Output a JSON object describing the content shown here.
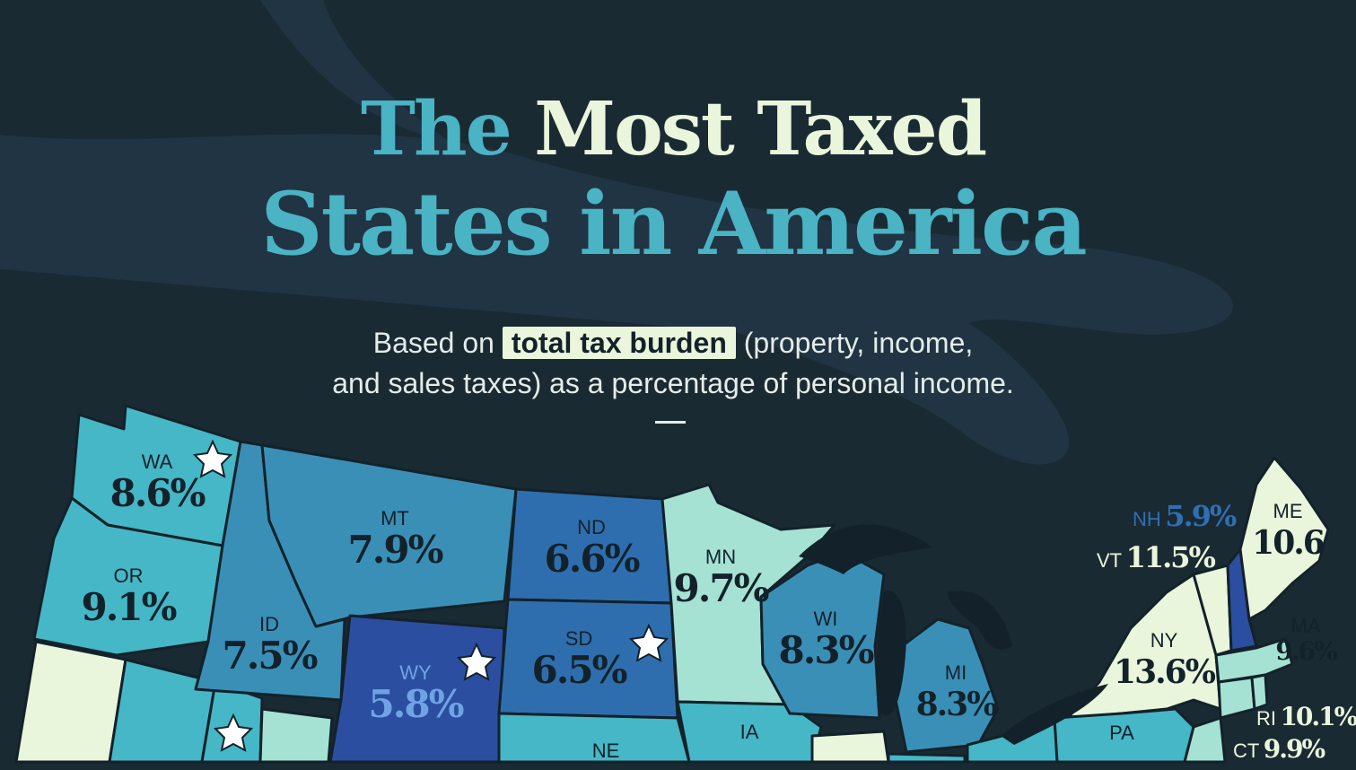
{
  "title": {
    "part1": "The ",
    "part2": "Most Taxed",
    "line2": "States in America"
  },
  "subtitle": {
    "before": "Based on ",
    "highlight": "total tax burden",
    "after": " (property, income,",
    "line2": "and sales taxes) as a percentage of personal income."
  },
  "colors": {
    "background": "#1a2a33",
    "title_teal": "#4ab3c4",
    "title_cream": "#eaf6dc",
    "highlight_bg": "#eaf6dc",
    "lowest_tier": "#2c4ea0",
    "low_tier": "#2f6eae",
    "mid_tier": "#3a8fb7",
    "upper_mid_tier": "#45b7c6",
    "high_tier": "#a6e2d3",
    "highest_tier": "#e9f6dc"
  },
  "legend_icons": {
    "star": "star-icon",
    "star_meaning": ""
  },
  "states": [
    {
      "abbr": "WA",
      "value": "8.6%",
      "tax_burden": 8.6,
      "star": true
    },
    {
      "abbr": "OR",
      "value": "9.1%",
      "tax_burden": 9.1,
      "star": false
    },
    {
      "abbr": "ID",
      "value": "7.5%",
      "tax_burden": 7.5,
      "star": false
    },
    {
      "abbr": "MT",
      "value": "7.9%",
      "tax_burden": 7.9,
      "star": false
    },
    {
      "abbr": "WY",
      "value": "5.8%",
      "tax_burden": 5.8,
      "star": true
    },
    {
      "abbr": "ND",
      "value": "6.6%",
      "tax_burden": 6.6,
      "star": false
    },
    {
      "abbr": "SD",
      "value": "6.5%",
      "tax_burden": 6.5,
      "star": true
    },
    {
      "abbr": "NE",
      "value": "",
      "tax_burden": null,
      "star": false
    },
    {
      "abbr": "MN",
      "value": "9.7%",
      "tax_burden": 9.7,
      "star": false
    },
    {
      "abbr": "IA",
      "value": "",
      "tax_burden": null,
      "star": false
    },
    {
      "abbr": "WI",
      "value": "8.3%",
      "tax_burden": 8.3,
      "star": false
    },
    {
      "abbr": "MI",
      "value": "8.3%",
      "tax_burden": 8.3,
      "star": false
    },
    {
      "abbr": "NY",
      "value": "13.6%",
      "tax_burden": 13.6,
      "star": false
    },
    {
      "abbr": "PA",
      "value": "",
      "tax_burden": null,
      "star": false
    },
    {
      "abbr": "VT",
      "value": "11.5%",
      "tax_burden": 11.5,
      "star": false
    },
    {
      "abbr": "NH",
      "value": "5.9%",
      "tax_burden": 5.9,
      "star": false
    },
    {
      "abbr": "ME",
      "value": "10.6",
      "tax_burden": 10.6,
      "star": false
    },
    {
      "abbr": "MA",
      "value": "9.6%",
      "tax_burden": 9.6,
      "star": false
    },
    {
      "abbr": "RI",
      "value": "10.1%",
      "tax_burden": 10.1,
      "star": false
    },
    {
      "abbr": "CT",
      "value": "9.9%",
      "tax_burden": 9.9,
      "star": false
    }
  ]
}
